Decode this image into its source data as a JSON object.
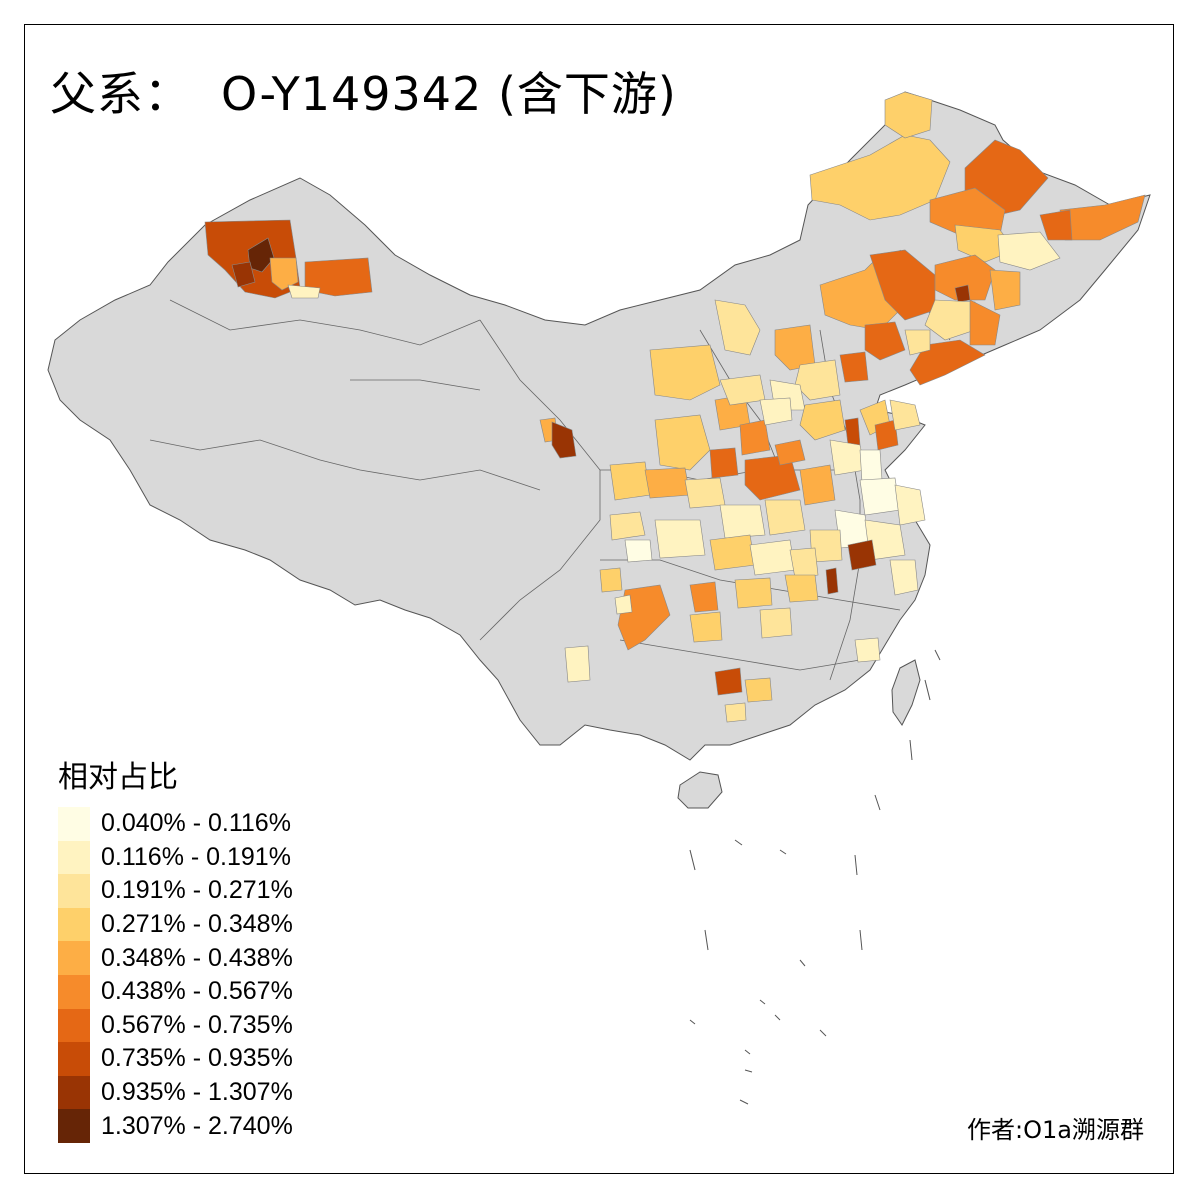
{
  "title": {
    "prefix": "父系：",
    "haplogroup": "O-Y149342 (含下游)"
  },
  "legend": {
    "title": "相对占比",
    "bins": [
      {
        "label": "0.040% - 0.116%",
        "color": "#fffde4"
      },
      {
        "label": "0.116% - 0.191%",
        "color": "#fff3c1"
      },
      {
        "label": "0.191% - 0.271%",
        "color": "#fee49a"
      },
      {
        "label": "0.271% - 0.348%",
        "color": "#fed06a"
      },
      {
        "label": "0.348% - 0.438%",
        "color": "#fdae45"
      },
      {
        "label": "0.438% - 0.567%",
        "color": "#f68b2b"
      },
      {
        "label": "0.567% - 0.735%",
        "color": "#e56815"
      },
      {
        "label": "0.735% - 0.935%",
        "color": "#c84c07"
      },
      {
        "label": "0.935% - 1.307%",
        "color": "#993404"
      },
      {
        "label": "1.307% - 2.740%",
        "color": "#662506"
      }
    ]
  },
  "credit": "作者:O1a溯源群",
  "colors": {
    "no_data": "#d9d9d9",
    "border": "#555555",
    "frame": "#000000"
  }
}
